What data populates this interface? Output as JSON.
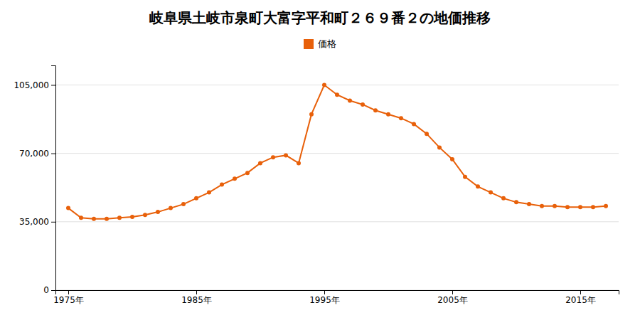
{
  "chart_data": {
    "type": "line",
    "title": "岐阜県土岐市泉町大富字平和町２６９番２の地価推移",
    "x": [
      1975,
      1976,
      1977,
      1978,
      1979,
      1980,
      1981,
      1982,
      1983,
      1984,
      1985,
      1986,
      1987,
      1988,
      1989,
      1990,
      1991,
      1992,
      1993,
      1994,
      1995,
      1996,
      1997,
      1998,
      1999,
      2000,
      2001,
      2002,
      2003,
      2004,
      2005,
      2006,
      2007,
      2008,
      2009,
      2010,
      2011,
      2012,
      2013,
      2014,
      2015,
      2016,
      2017
    ],
    "series": [
      {
        "name": "価格",
        "color": "#e8600a",
        "marker": "circle",
        "values": [
          42000,
          37000,
          36500,
          36500,
          37000,
          37500,
          38500,
          40000,
          42000,
          44000,
          47000,
          50000,
          54000,
          57000,
          60000,
          65000,
          68000,
          69000,
          65000,
          90000,
          105000,
          100000,
          97000,
          95000,
          92000,
          90000,
          88000,
          85000,
          80000,
          73000,
          67000,
          58000,
          53000,
          50000,
          47000,
          45000,
          44000,
          43000,
          43000,
          42500,
          42500,
          42500,
          43000
        ]
      }
    ],
    "xlim": [
      1974,
      2018
    ],
    "xticks": [
      {
        "value": 1975,
        "label": "1975年"
      },
      {
        "value": 1985,
        "label": "1985年"
      },
      {
        "value": 1995,
        "label": "1995年"
      },
      {
        "value": 2005,
        "label": "2005年"
      },
      {
        "value": 2015,
        "label": "2015年"
      }
    ],
    "ylim": [
      0,
      115000
    ],
    "yticks": [
      0,
      {
        "value": 35000,
        "label": "35,000"
      },
      {
        "value": 70000,
        "label": "70,000"
      },
      {
        "value": 105000,
        "label": "105,000"
      }
    ],
    "grid": true,
    "legend": "top"
  }
}
